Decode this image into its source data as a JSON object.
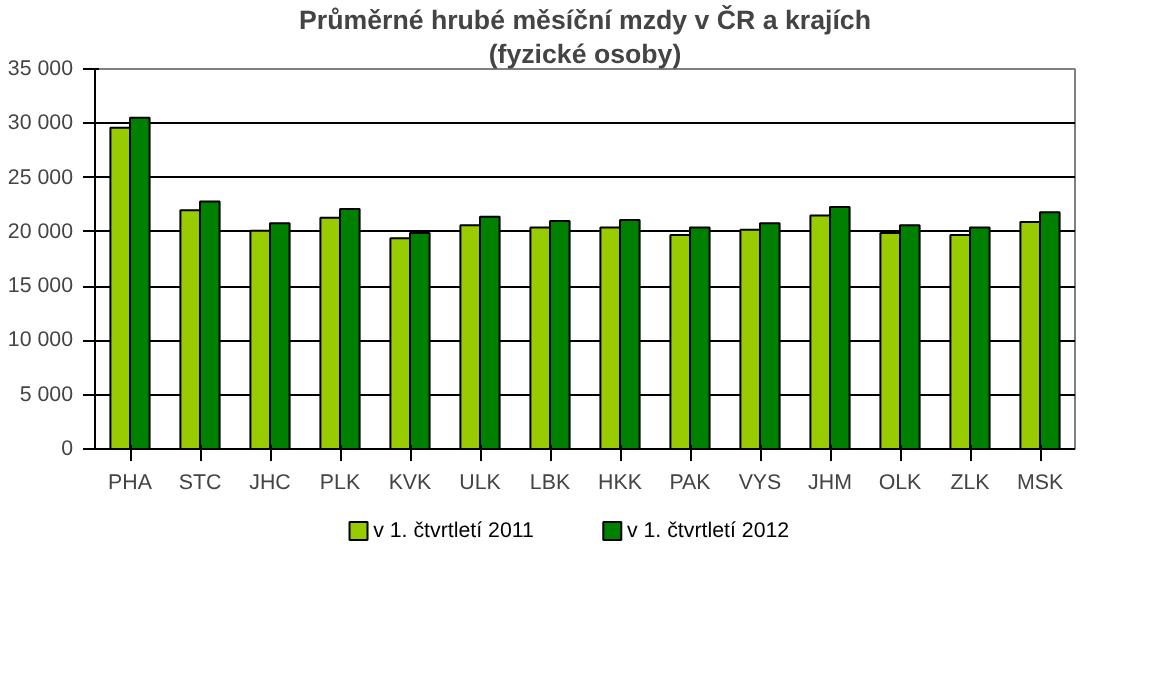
{
  "chart_data": {
    "type": "bar",
    "title": "Průměrné hrubé měsíční mzdy v ČR a krajích",
    "subtitle": "(fyzické osoby)",
    "categories": [
      "PHA",
      "STC",
      "JHC",
      "PLK",
      "KVK",
      "ULK",
      "LBK",
      "HKK",
      "PAK",
      "VYS",
      "JHM",
      "OLK",
      "ZLK",
      "MSK"
    ],
    "series": [
      {
        "name": "v 1. čtvrtletí 2011",
        "color": "#99cc00",
        "values": [
          29600,
          22000,
          20100,
          21300,
          19400,
          20600,
          20400,
          20400,
          19700,
          20200,
          21500,
          19900,
          19700,
          20900
        ]
      },
      {
        "name": "v 1. čtvrtletí 2012",
        "color": "#008000",
        "values": [
          30500,
          22800,
          20800,
          22100,
          19900,
          21400,
          21000,
          21100,
          20400,
          20800,
          22300,
          20600,
          20400,
          21800
        ]
      }
    ],
    "ylim": [
      0,
      35000
    ],
    "yticks": [
      {
        "value": 0,
        "label": "0"
      },
      {
        "value": 5000,
        "label": "5 000"
      },
      {
        "value": 10000,
        "label": "10 000"
      },
      {
        "value": 15000,
        "label": "15 000"
      },
      {
        "value": 20000,
        "label": "20 000"
      },
      {
        "value": 25000,
        "label": "25 000"
      },
      {
        "value": 30000,
        "label": "30 000"
      },
      {
        "value": 35000,
        "label": "35 000"
      }
    ],
    "grid": "y",
    "legend": "bottom"
  }
}
